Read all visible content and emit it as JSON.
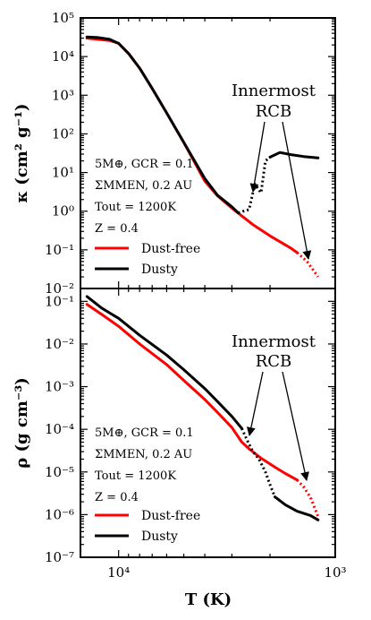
{
  "chart_data": [
    {
      "type": "line",
      "panel": "top",
      "x_scale": "log",
      "x_reversed": true,
      "xlim": [
        15000,
        1000
      ],
      "y_scale": "log",
      "ylim": [
        0.01,
        100000
      ],
      "ylabel": "κ (cm² g⁻¹)",
      "ytick_labels": [
        "10⁻²",
        "10⁻¹",
        "10⁰",
        "10¹",
        "10²",
        "10³",
        "10⁴",
        "10⁵"
      ],
      "grid": false,
      "legend_position": "lower-left",
      "info_lines": [
        "5M⊕, GCR = 0.1",
        "ΣMMEN, 0.2 AU",
        "Tout = 1200K",
        "Z = 0.4"
      ],
      "annotation": {
        "lines": [
          "Innermost",
          "RCB"
        ]
      },
      "series": [
        {
          "name": "Dust-free",
          "color": "#ff0000",
          "segments": [
            {
              "style": "solid",
              "points": [
                [
                  14000,
                  30000
                ],
                [
                  12500,
                  28000
                ],
                [
                  11000,
                  26000
                ],
                [
                  10000,
                  22000
                ],
                [
                  9000,
                  12000
                ],
                [
                  8000,
                  5000
                ],
                [
                  7000,
                  1500
                ],
                [
                  6000,
                  350
                ],
                [
                  5000,
                  60
                ],
                [
                  4000,
                  6
                ],
                [
                  3500,
                  2.5
                ],
                [
                  3000,
                  1.2
                ],
                [
                  2700,
                  0.75
                ],
                [
                  2400,
                  0.45
                ],
                [
                  2000,
                  0.23
                ],
                [
                  1600,
                  0.11
                ],
                [
                  1500,
                  0.085
                ]
              ]
            },
            {
              "style": "dotted",
              "points": [
                [
                  1500,
                  0.085
                ],
                [
                  1350,
                  0.05
                ],
                [
                  1200,
                  0.02
                ]
              ]
            }
          ]
        },
        {
          "name": "Dusty",
          "color": "#000000",
          "segments": [
            {
              "style": "solid",
              "points": [
                [
                  14000,
                  32000
                ],
                [
                  12500,
                  31000
                ],
                [
                  11000,
                  28000
                ],
                [
                  10000,
                  22000
                ],
                [
                  9000,
                  12000
                ],
                [
                  8000,
                  5000
                ],
                [
                  7000,
                  1500
                ],
                [
                  6000,
                  350
                ],
                [
                  5000,
                  60
                ],
                [
                  4000,
                  7
                ],
                [
                  3500,
                  2.6
                ],
                [
                  3000,
                  1.3
                ],
                [
                  2800,
                  0.9
                ]
              ]
            },
            {
              "style": "dotted",
              "points": [
                [
                  2800,
                  0.9
                ],
                [
                  2650,
                  1.0
                ],
                [
                  2500,
                  1.1
                ],
                [
                  2350,
                  5
                ],
                [
                  2200,
                  3
                ],
                [
                  2100,
                  20
                ],
                [
                  2000,
                  25
                ]
              ]
            },
            {
              "style": "solid",
              "points": [
                [
                  2000,
                  25
                ],
                [
                  1800,
                  33
                ],
                [
                  1600,
                  29
                ],
                [
                  1400,
                  26
                ],
                [
                  1200,
                  24
                ]
              ]
            }
          ]
        }
      ]
    },
    {
      "type": "line",
      "panel": "bottom",
      "x_scale": "log",
      "x_reversed": true,
      "xlim": [
        15000,
        1000
      ],
      "y_scale": "log",
      "ylim": [
        1e-07,
        0.2
      ],
      "xlabel": "T (K)",
      "ylabel": "ρ (g cm⁻³)",
      "xtick_labels": [
        "10⁴",
        "10³"
      ],
      "ytick_labels": [
        "10⁻⁷",
        "10⁻⁶",
        "10⁻⁵",
        "10⁻⁴",
        "10⁻³",
        "10⁻²",
        "10⁻¹"
      ],
      "grid": false,
      "legend_position": "lower-left",
      "info_lines": [
        "5M⊕, GCR = 0.1",
        "ΣMMEN, 0.2 AU",
        "Tout = 1200K",
        "Z = 0.4"
      ],
      "annotation": {
        "lines": [
          "Innermost",
          "RCB"
        ]
      },
      "series": [
        {
          "name": "Dust-free",
          "color": "#ff0000",
          "segments": [
            {
              "style": "solid",
              "points": [
                [
                  14000,
                  0.085
                ],
                [
                  12000,
                  0.05
                ],
                [
                  10000,
                  0.026
                ],
                [
                  8000,
                  0.01
                ],
                [
                  6000,
                  0.0033
                ],
                [
                  5000,
                  0.0014
                ],
                [
                  4000,
                  0.0005
                ],
                [
                  3500,
                  0.00025
                ],
                [
                  3000,
                  0.00011
                ],
                [
                  2700,
                  5e-05
                ],
                [
                  2500,
                  3.5e-05
                ],
                [
                  2200,
                  2.1e-05
                ],
                [
                  1900,
                  1.3e-05
                ],
                [
                  1700,
                  9.2e-06
                ],
                [
                  1500,
                  6.5e-06
                ]
              ]
            },
            {
              "style": "dotted",
              "points": [
                [
                  1500,
                  6.5e-06
                ],
                [
                  1400,
                  4.5e-06
                ],
                [
                  1300,
                  2.5e-06
                ],
                [
                  1200,
                  9e-07
                ]
              ]
            }
          ]
        },
        {
          "name": "Dusty",
          "color": "#000000",
          "segments": [
            {
              "style": "solid",
              "points": [
                [
                  14000,
                  0.13
                ],
                [
                  12000,
                  0.07
                ],
                [
                  10000,
                  0.04
                ],
                [
                  8000,
                  0.016
                ],
                [
                  6000,
                  0.0055
                ],
                [
                  5000,
                  0.0025
                ],
                [
                  4000,
                  0.0009
                ],
                [
                  3500,
                  0.00045
                ],
                [
                  3000,
                  0.0002
                ],
                [
                  2700,
                  0.000105
                ]
              ]
            },
            {
              "style": "dotted",
              "points": [
                [
                  2700,
                  0.000105
                ],
                [
                  2550,
                  5.5e-05
                ],
                [
                  2400,
                  3e-05
                ],
                [
                  2250,
                  2e-05
                ],
                [
                  2100,
                  1e-05
                ],
                [
                  2000,
                  5e-06
                ],
                [
                  1900,
                  2.6e-06
                ]
              ]
            },
            {
              "style": "solid",
              "points": [
                [
                  1900,
                  2.6e-06
                ],
                [
                  1700,
                  1.7e-06
                ],
                [
                  1500,
                  1.2e-06
                ],
                [
                  1300,
                  9.5e-07
                ],
                [
                  1200,
                  7.5e-07
                ]
              ]
            }
          ]
        }
      ]
    }
  ]
}
